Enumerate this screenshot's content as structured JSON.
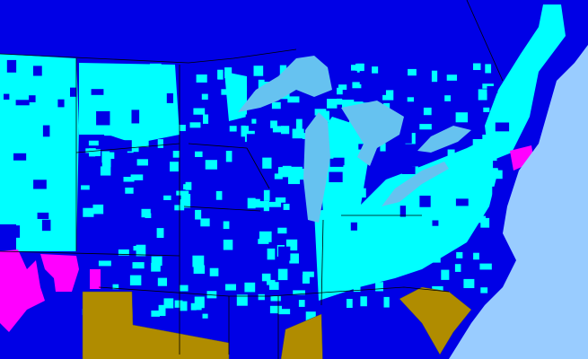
{
  "map": {
    "colors": {
      "base": "#0000e6",
      "cyan": "#00ffff",
      "magenta": "#ff00ff",
      "gold": "#b08c00",
      "water": "#99ccff",
      "lakes": "#66c2f0",
      "borders": "#4a4a4a"
    }
  }
}
